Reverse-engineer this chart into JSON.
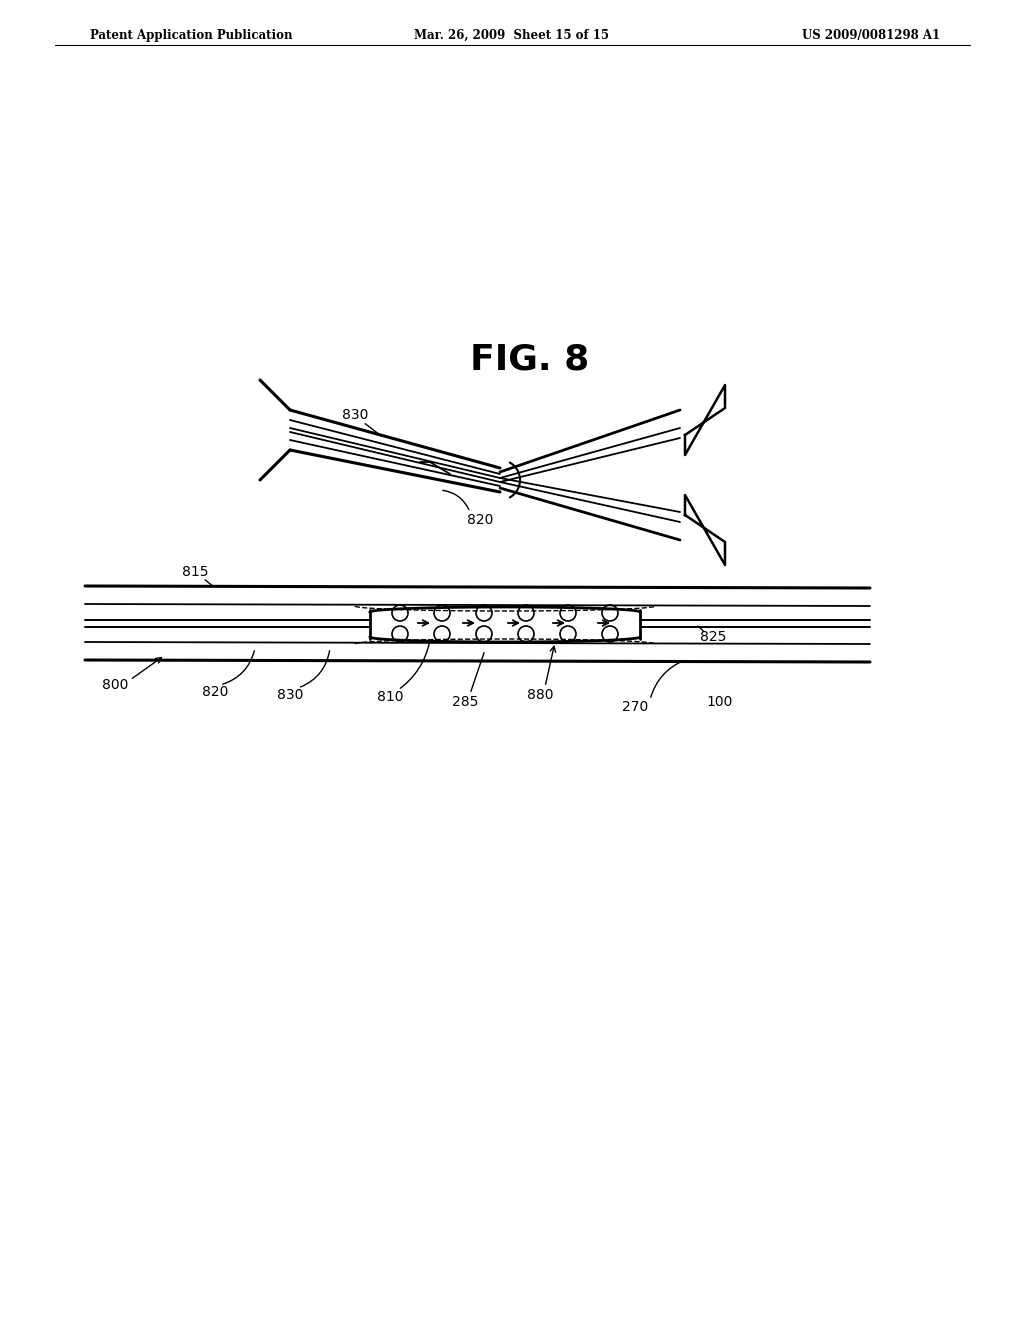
{
  "bg_color": "#ffffff",
  "line_color": "#000000",
  "header_left": "Patent Application Publication",
  "header_center": "Mar. 26, 2009  Sheet 15 of 15",
  "header_right": "US 2009/0081298 A1",
  "fig_label": "FIG. 8"
}
